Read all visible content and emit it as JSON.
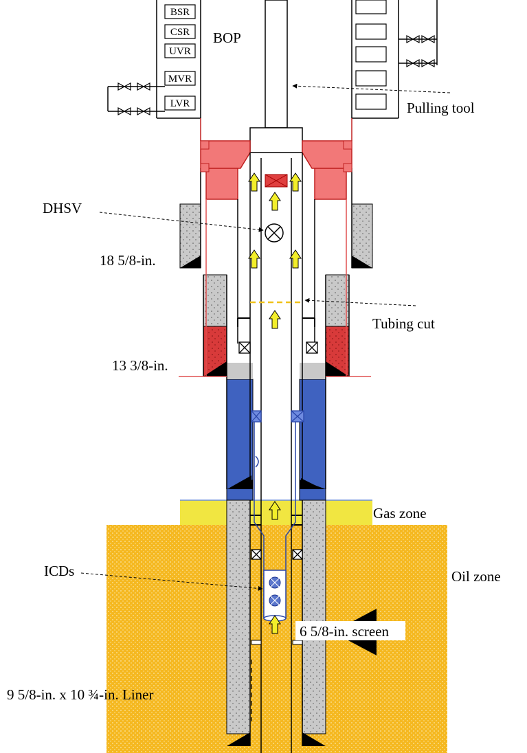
{
  "bop": {
    "rams": [
      "BSR",
      "CSR",
      "UVR",
      "MVR",
      "LVR"
    ],
    "label": "BOP"
  },
  "labels": {
    "pulling_tool": "Pulling tool",
    "dhsv": "DHSV",
    "casing_18": "18 5/8-in.",
    "tubing_cut": "Tubing cut",
    "casing_13": "13 3/8-in.",
    "gas_zone": "Gas zone",
    "icds": "ICDs",
    "oil_zone": "Oil zone",
    "screen": "6 5/8-in. screen",
    "liner": "9 5/8-in. x 10 ¾-in. Liner"
  },
  "colors": {
    "oil_zone": "#f5b820",
    "gas_zone": "#f1e641",
    "cement": "#c9c9c9",
    "red_cement": "#d83a3a",
    "blue_fill": "#3f62c0",
    "wellhead": "#f27878",
    "flow_arrow": "#f3ee2a",
    "cut_line": "#f0c21a"
  }
}
